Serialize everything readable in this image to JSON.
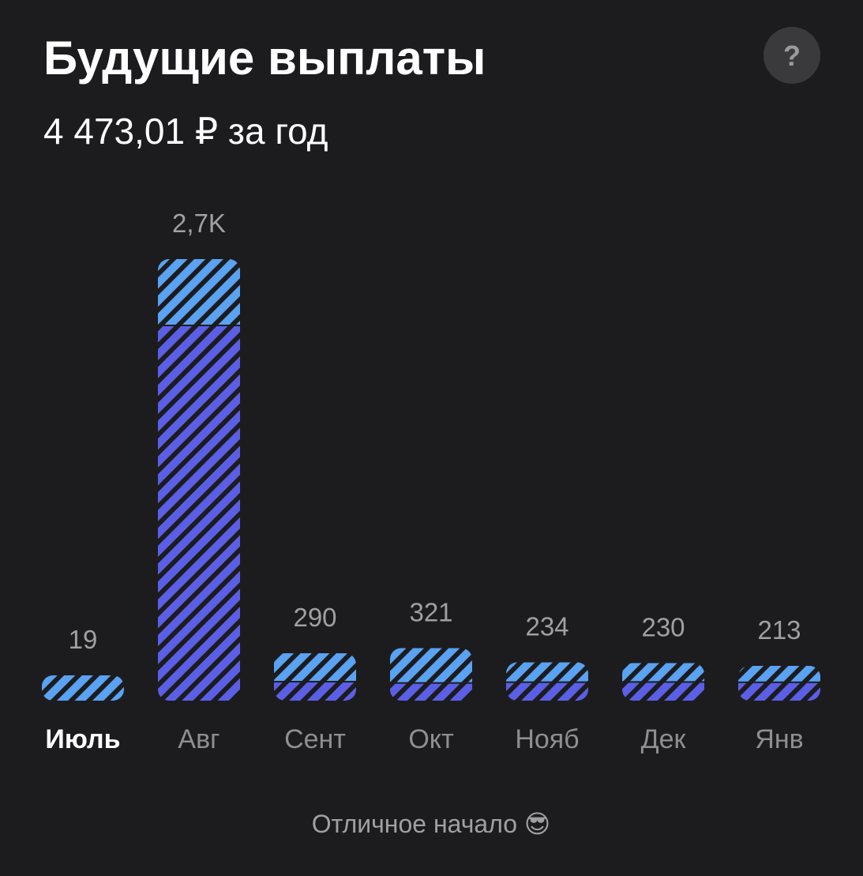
{
  "title": "Будущие выплаты",
  "subtitle": "4 473,01 ₽ за год",
  "help_button": "?",
  "footer": "Отличное начало 😎",
  "chart_data": {
    "type": "bar",
    "stacked": true,
    "categories": [
      "Июль",
      "Авг",
      "Сент",
      "Окт",
      "Нояб",
      "Дек",
      "Янв"
    ],
    "values": [
      19,
      2700,
      290,
      321,
      234,
      230,
      213
    ],
    "value_labels": [
      "19",
      "2,7K",
      "290",
      "321",
      "234",
      "230",
      "213"
    ],
    "series": [
      {
        "color": "#5b5fe6",
        "values": [
          0,
          2294,
          116,
          108,
          113,
          114,
          112
        ]
      },
      {
        "color": "#5aa2f2",
        "values": [
          19,
          406,
          174,
          213,
          121,
          116,
          101
        ]
      }
    ],
    "ylim": [
      0,
      2700
    ]
  }
}
